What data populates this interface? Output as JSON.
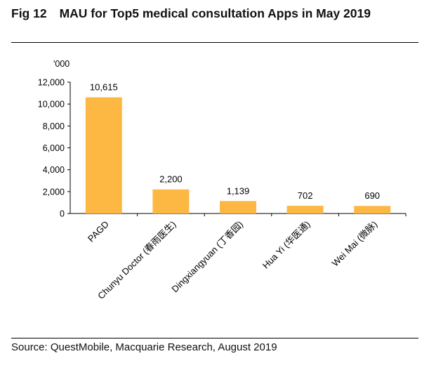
{
  "header": {
    "fig_label": "Fig 12",
    "title": "MAU for Top5 medical consultation Apps in May 2019"
  },
  "footer": {
    "source": "Source: QuestMobile, Macquarie Research, August 2019"
  },
  "chart_data": {
    "type": "bar",
    "title": "MAU for Top5 medical consultation Apps in May 2019",
    "unit_label": "'000",
    "categories": [
      "PAGD",
      "Chunyu Doctor (春雨医生)",
      "Dingxiangyuan (丁香园)",
      "Hua Yi (华医通)",
      "Wei Mai (微脉)"
    ],
    "values": [
      10615,
      2200,
      1139,
      702,
      690
    ],
    "value_labels": [
      "10,615",
      "2,200",
      "1,139",
      "702",
      "690"
    ],
    "ylim": [
      0,
      12000
    ],
    "yticks": [
      0,
      2000,
      4000,
      6000,
      8000,
      10000,
      12000
    ],
    "ytick_labels": [
      "0",
      "2,000",
      "4,000",
      "6,000",
      "8,000",
      "10,000",
      "12,000"
    ],
    "grid": false,
    "legend": "none",
    "bar_color": "#FDB844"
  }
}
